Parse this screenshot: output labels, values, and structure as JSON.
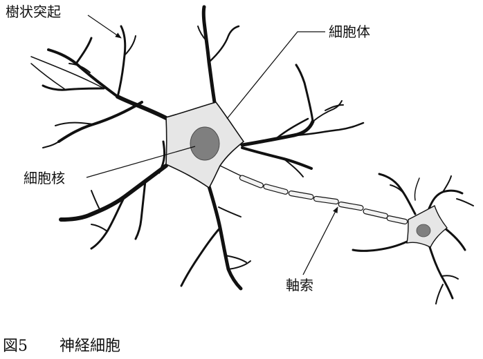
{
  "figure": {
    "labels": {
      "dendrite": "樹状突起",
      "cell_body": "細胞体",
      "nucleus": "細胞核",
      "axon": "軸索"
    },
    "caption": {
      "number": "図5",
      "title": "神経細胞"
    },
    "colors": {
      "cell_body_fill": "#e6e6e6",
      "nucleus_fill": "#7f7f7f",
      "outline": "#111111",
      "axon_fill": "#f2f2f2"
    }
  }
}
